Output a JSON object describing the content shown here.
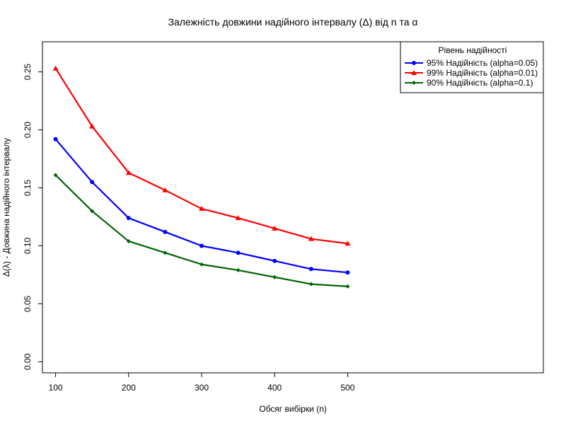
{
  "chart_data": {
    "type": "line",
    "title": "Залежність довжини надійного інтервалу (Δ) від n та α",
    "xlabel": "Обсяг вибірки (n)",
    "ylabel": "Δ(λ) - Довжина надійного інтервалу",
    "xlim": [
      82,
      768
    ],
    "ylim": [
      -0.0095,
      0.276
    ],
    "x_ticks": [
      100,
      200,
      300,
      400,
      500
    ],
    "y_ticks": [
      0.0,
      0.05,
      0.1,
      0.15,
      0.2,
      0.25
    ],
    "y_tick_labels": [
      "0.00",
      "0.05",
      "0.10",
      "0.15",
      "0.20",
      "0.25"
    ],
    "grid": false,
    "legend": {
      "title": "Рівень надійності",
      "position": "top-right"
    },
    "x": [
      100,
      150,
      200,
      250,
      300,
      350,
      400,
      450,
      500
    ],
    "series": [
      {
        "name": "95% Надійність (alpha=0.05)",
        "color": "#0000ff",
        "marker": "circle",
        "values": [
          0.192,
          0.155,
          0.124,
          0.112,
          0.1,
          0.094,
          0.087,
          0.08,
          0.077
        ]
      },
      {
        "name": "99% Надійність (alpha=0.01)",
        "color": "#ff0000",
        "marker": "triangle",
        "values": [
          0.253,
          0.203,
          0.163,
          0.148,
          0.132,
          0.124,
          0.115,
          0.106,
          0.102
        ]
      },
      {
        "name": "90% Надійність (alpha=0.1)",
        "color": "#006400",
        "marker": "diamond",
        "values": [
          0.161,
          0.13,
          0.104,
          0.094,
          0.084,
          0.079,
          0.073,
          0.067,
          0.065
        ]
      }
    ]
  }
}
